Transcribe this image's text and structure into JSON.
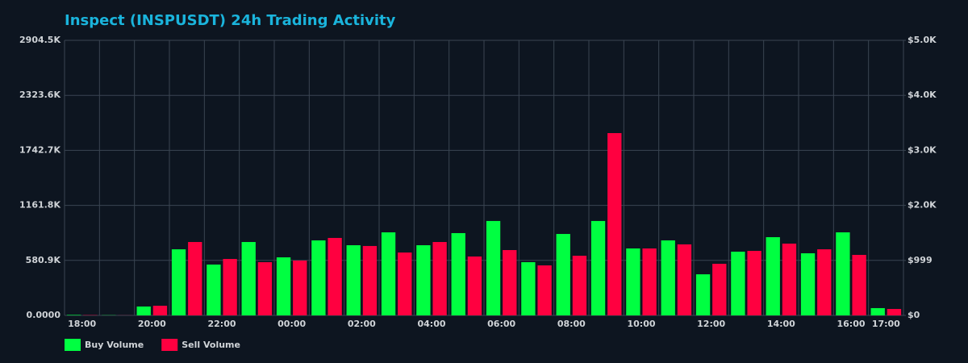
{
  "chart_data": {
    "type": "bar",
    "title": "Inspect (INSPUSDT) 24h Trading Activity",
    "categories": [
      "18:00",
      null,
      "20:00",
      null,
      "22:00",
      null,
      "00:00",
      null,
      "02:00",
      null,
      "04:00",
      null,
      "06:00",
      null,
      "08:00",
      null,
      "10:00",
      null,
      "12:00",
      null,
      "14:00",
      null,
      "16:00",
      "17:00"
    ],
    "series": [
      {
        "name": "Buy Volume",
        "color": "#00ff41",
        "values": [
          5000,
          2000,
          94000,
          698000,
          537000,
          775000,
          613000,
          792000,
          741000,
          877000,
          741000,
          869000,
          997000,
          562000,
          860000,
          997000,
          707000,
          792000,
          434000,
          673000,
          826000,
          656000,
          877000,
          77000
        ]
      },
      {
        "name": "Sell Volume",
        "color": "#ff0040",
        "values": [
          3000,
          1000,
          102000,
          775000,
          596000,
          562000,
          579000,
          818000,
          733000,
          664000,
          775000,
          622000,
          690000,
          528000,
          630000,
          1925000,
          707000,
          750000,
          545000,
          681000,
          758000,
          698000,
          639000,
          68000
        ]
      }
    ],
    "ylim": [
      0,
      2904500
    ],
    "yticks": [
      {
        "value": 0,
        "label": "0.0000"
      },
      {
        "value": 580900,
        "label": "580.9K"
      },
      {
        "value": 1161800,
        "label": "1161.8K"
      },
      {
        "value": 1742700,
        "label": "1742.7K"
      },
      {
        "value": 2323600,
        "label": "2323.6K"
      },
      {
        "value": 2904500,
        "label": "2904.5K"
      }
    ],
    "y2lim": [
      0,
      5000
    ],
    "y2ticks": [
      {
        "value": 0,
        "label": "$0"
      },
      {
        "value": 999,
        "label": "$999"
      },
      {
        "value": 2000,
        "label": "$2.0K"
      },
      {
        "value": 3000,
        "label": "$3.0K"
      },
      {
        "value": 4000,
        "label": "$4.0K"
      },
      {
        "value": 5000,
        "label": "$5.0K"
      }
    ],
    "grid": true
  }
}
